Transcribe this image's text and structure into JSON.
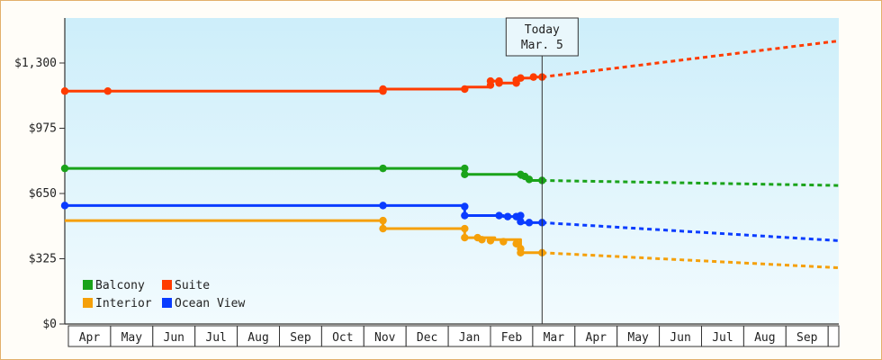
{
  "chart_data": {
    "type": "line",
    "title": "",
    "xlabel": "",
    "ylabel": "",
    "ylim": [
      0,
      1300
    ],
    "y_ticks": [
      {
        "value": 0,
        "label": "$0"
      },
      {
        "value": 325,
        "label": "$325"
      },
      {
        "value": 650,
        "label": "$650"
      },
      {
        "value": 975,
        "label": "$975"
      },
      {
        "value": 1300,
        "label": "$1,300"
      }
    ],
    "months": [
      "Apr",
      "May",
      "Jun",
      "Jul",
      "Aug",
      "Sep",
      "Oct",
      "Nov",
      "Dec",
      "Jan",
      "Feb",
      "Mar",
      "Apr",
      "May",
      "Jun",
      "Jul",
      "Aug",
      "Sep"
    ],
    "x_range_months": [
      0,
      18
    ],
    "today": {
      "label_line1": "Today",
      "label_line2": "Mar. 5",
      "x": 11.1
    },
    "grid": false,
    "legend_placement": "bottom-left",
    "background_gradient": [
      "#cdeefa",
      "#f2fbfe"
    ],
    "series": [
      {
        "name": "Suite",
        "color": "#ff3c00",
        "actual": [
          [
            0,
            1160
          ],
          [
            1,
            1160
          ],
          [
            7.4,
            1160
          ],
          [
            7.4,
            1170
          ],
          [
            9.3,
            1170
          ],
          [
            9.3,
            1180
          ],
          [
            9.9,
            1180
          ],
          [
            9.9,
            1210
          ],
          [
            10.1,
            1210
          ],
          [
            10.1,
            1200
          ],
          [
            10.5,
            1200
          ],
          [
            10.5,
            1225
          ],
          [
            10.9,
            1225
          ],
          [
            10.9,
            1230
          ],
          [
            11.1,
            1230
          ]
        ],
        "markers": [
          [
            0,
            1160
          ],
          [
            1,
            1160
          ],
          [
            7.4,
            1160
          ],
          [
            7.4,
            1170
          ],
          [
            9.3,
            1170
          ],
          [
            9.9,
            1190
          ],
          [
            9.9,
            1210
          ],
          [
            10.1,
            1210
          ],
          [
            10.1,
            1200
          ],
          [
            10.5,
            1200
          ],
          [
            10.5,
            1215
          ],
          [
            10.6,
            1225
          ],
          [
            10.9,
            1230
          ],
          [
            11.1,
            1230
          ]
        ],
        "forecast": [
          [
            11.1,
            1230
          ],
          [
            18,
            1410
          ]
        ]
      },
      {
        "name": "Balcony",
        "color": "#1aa31a",
        "actual": [
          [
            0,
            775
          ],
          [
            7.4,
            775
          ],
          [
            9.3,
            775
          ],
          [
            9.3,
            745
          ],
          [
            10.6,
            745
          ],
          [
            10.6,
            730
          ],
          [
            10.8,
            730
          ],
          [
            10.8,
            715
          ],
          [
            11.1,
            715
          ]
        ],
        "markers": [
          [
            0,
            775
          ],
          [
            7.4,
            775
          ],
          [
            9.3,
            775
          ],
          [
            9.3,
            745
          ],
          [
            10.6,
            745
          ],
          [
            10.7,
            735
          ],
          [
            10.8,
            720
          ],
          [
            11.1,
            715
          ]
        ],
        "forecast": [
          [
            11.1,
            715
          ],
          [
            18,
            690
          ]
        ]
      },
      {
        "name": "Ocean View",
        "color": "#0a3cff",
        "actual": [
          [
            0,
            590
          ],
          [
            7.4,
            590
          ],
          [
            9.3,
            590
          ],
          [
            9.3,
            540
          ],
          [
            10.2,
            540
          ],
          [
            10.2,
            535
          ],
          [
            10.6,
            535
          ],
          [
            10.6,
            505
          ],
          [
            11.1,
            505
          ]
        ],
        "markers": [
          [
            0,
            590
          ],
          [
            7.4,
            590
          ],
          [
            9.3,
            585
          ],
          [
            9.3,
            540
          ],
          [
            10.1,
            540
          ],
          [
            10.3,
            535
          ],
          [
            10.5,
            535
          ],
          [
            10.6,
            540
          ],
          [
            10.6,
            510
          ],
          [
            10.8,
            505
          ],
          [
            11.1,
            505
          ]
        ],
        "forecast": [
          [
            11.1,
            505
          ],
          [
            18,
            415
          ]
        ]
      },
      {
        "name": "Interior",
        "color": "#f5a00a",
        "actual": [
          [
            0,
            515
          ],
          [
            7.4,
            515
          ],
          [
            7.4,
            475
          ],
          [
            9.3,
            475
          ],
          [
            9.3,
            430
          ],
          [
            10.0,
            430
          ],
          [
            10.0,
            420
          ],
          [
            10.6,
            420
          ],
          [
            10.6,
            355
          ],
          [
            11.1,
            355
          ]
        ],
        "markers": [
          [
            7.4,
            515
          ],
          [
            7.4,
            475
          ],
          [
            9.3,
            475
          ],
          [
            9.3,
            430
          ],
          [
            9.6,
            430
          ],
          [
            9.7,
            420
          ],
          [
            9.9,
            415
          ],
          [
            10.2,
            410
          ],
          [
            10.5,
            400
          ],
          [
            10.6,
            375
          ],
          [
            10.6,
            355
          ],
          [
            11.1,
            355
          ]
        ],
        "forecast": [
          [
            11.1,
            355
          ],
          [
            18,
            280
          ]
        ]
      }
    ],
    "legend": [
      {
        "label": "Balcony",
        "color": "#1aa31a"
      },
      {
        "label": "Suite",
        "color": "#ff3c00"
      },
      {
        "label": "Interior",
        "color": "#f5a00a"
      },
      {
        "label": "Ocean View",
        "color": "#0a3cff"
      }
    ]
  }
}
